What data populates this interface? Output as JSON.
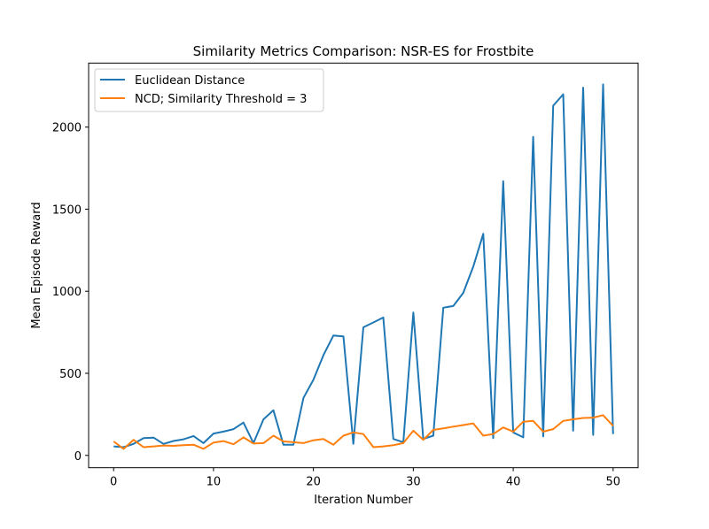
{
  "chart_data": {
    "type": "line",
    "title": "Similarity Metrics Comparison: NSR-ES for Frostbite",
    "xlabel": "Iteration Number",
    "ylabel": "Mean Episode Reward",
    "xlim": [
      -2.5,
      52.5
    ],
    "ylim": [
      -75,
      2390
    ],
    "xticks": [
      0,
      10,
      20,
      30,
      40,
      50
    ],
    "yticks": [
      0,
      500,
      1000,
      1500,
      2000
    ],
    "grid": false,
    "legend_position": "upper-left",
    "x": [
      0,
      1,
      2,
      3,
      4,
      5,
      6,
      7,
      8,
      9,
      10,
      11,
      12,
      13,
      14,
      15,
      16,
      17,
      18,
      19,
      20,
      21,
      22,
      23,
      24,
      25,
      26,
      27,
      28,
      29,
      30,
      31,
      32,
      33,
      34,
      35,
      36,
      37,
      38,
      39,
      40,
      41,
      42,
      43,
      44,
      45,
      46,
      47,
      48,
      49,
      50
    ],
    "series": [
      {
        "name": "Euclidean Distance",
        "color": "#1f77b4",
        "values": [
          55,
          50,
          70,
          105,
          108,
          70,
          88,
          98,
          118,
          75,
          133,
          145,
          160,
          200,
          75,
          220,
          275,
          65,
          65,
          350,
          460,
          610,
          730,
          725,
          70,
          780,
          810,
          840,
          100,
          80,
          870,
          100,
          120,
          900,
          910,
          990,
          1150,
          1350,
          105,
          1670,
          140,
          110,
          1940,
          115,
          2130,
          2200,
          150,
          2240,
          125,
          2260,
          130
        ]
      },
      {
        "name": "NCD; Similarity Threshold = 3",
        "color": "#ff7f0e",
        "values": [
          85,
          40,
          95,
          50,
          55,
          60,
          58,
          62,
          65,
          40,
          78,
          87,
          68,
          110,
          72,
          75,
          120,
          85,
          80,
          75,
          92,
          100,
          65,
          120,
          140,
          130,
          50,
          55,
          62,
          75,
          150,
          95,
          155,
          165,
          175,
          185,
          195,
          120,
          130,
          170,
          145,
          205,
          210,
          145,
          160,
          210,
          220,
          228,
          230,
          245,
          180
        ]
      }
    ]
  }
}
